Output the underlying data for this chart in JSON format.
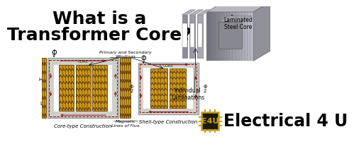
{
  "background_color": "#ffffff",
  "title_line1": "What is a",
  "title_line2": "Transformer Core?",
  "title_color": "#000000",
  "title_fontsize": 18,
  "title_fontweight": "bold",
  "label_laminated": "Laminated\nSteel Core",
  "label_individual": "Individual\nLaminations",
  "label_coretype": "Core-type Construction",
  "label_shelltype": "Shell-type Construction",
  "label_magnetic": "Magnetic\nLines of Flux",
  "label_primary_secondary": "Primary and Secondary\nWindings",
  "label_hv": "HV",
  "label_lv": "LV",
  "label_core": "CORE",
  "label_phi": "Φ",
  "logo_text": "Electrical 4 U",
  "logo_chip": "E4U",
  "winding_color": "#c8961a",
  "core_bg_color": "#d0cfc8",
  "core_border_color": "#999999",
  "flux_arrow_color": "#8b1010",
  "text_color": "#000000",
  "diagram_label_color": "#333300",
  "logo_chip_bg": "#1a1a10",
  "logo_chip_border": "#c8a020"
}
